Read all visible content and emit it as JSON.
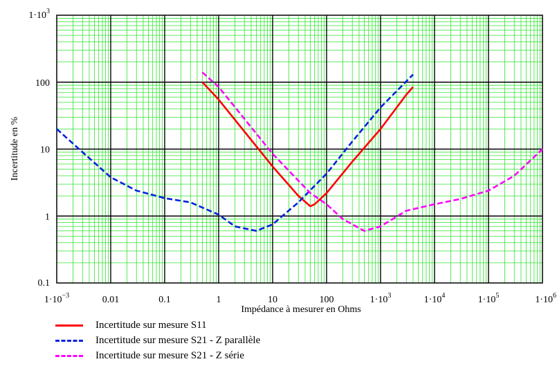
{
  "chart_data": {
    "type": "line",
    "xscale": "log",
    "yscale": "log",
    "xlim": [
      0.001,
      1000000
    ],
    "ylim": [
      0.1,
      1000
    ],
    "xlabel": "Impédance à mesurer en Ohms",
    "ylabel": "Incertitude en %",
    "grid": true,
    "x_ticks": [
      {
        "value": 0.001,
        "base": "1·10",
        "exp": "−3"
      },
      {
        "value": 0.01,
        "base": "0.01",
        "exp": ""
      },
      {
        "value": 0.1,
        "base": "0.1",
        "exp": ""
      },
      {
        "value": 1,
        "base": "1",
        "exp": ""
      },
      {
        "value": 10,
        "base": "10",
        "exp": ""
      },
      {
        "value": 100,
        "base": "100",
        "exp": ""
      },
      {
        "value": 1000,
        "base": "1·10",
        "exp": "3"
      },
      {
        "value": 10000,
        "base": "1·10",
        "exp": "4"
      },
      {
        "value": 100000,
        "base": "1·10",
        "exp": "5"
      },
      {
        "value": 1000000,
        "base": "1·10",
        "exp": "6"
      }
    ],
    "y_ticks": [
      {
        "value": 1000,
        "base": "1·10",
        "exp": "3"
      },
      {
        "value": 100,
        "base": "100",
        "exp": ""
      },
      {
        "value": 10,
        "base": "10",
        "exp": ""
      },
      {
        "value": 1,
        "base": "1",
        "exp": ""
      },
      {
        "value": 0.1,
        "base": "0.1",
        "exp": ""
      }
    ],
    "series": [
      {
        "name": "Incertitude sur mesure S11",
        "color": "#ff0000",
        "dash": "solid",
        "points": [
          [
            0.5,
            100
          ],
          [
            1,
            55
          ],
          [
            5,
            11
          ],
          [
            10,
            5.5
          ],
          [
            30,
            2
          ],
          [
            50,
            1.4
          ],
          [
            60,
            1.5
          ],
          [
            100,
            2.2
          ],
          [
            300,
            6.5
          ],
          [
            1000,
            20
          ],
          [
            3000,
            65
          ],
          [
            4000,
            85
          ]
        ]
      },
      {
        "name": "Incertitude sur mesure S21 - Z parallèle",
        "color": "#0022dd",
        "dash": "dashed",
        "points": [
          [
            0.001,
            20
          ],
          [
            0.003,
            9
          ],
          [
            0.01,
            3.8
          ],
          [
            0.03,
            2.4
          ],
          [
            0.1,
            1.85
          ],
          [
            0.3,
            1.6
          ],
          [
            1,
            1.05
          ],
          [
            2,
            0.7
          ],
          [
            5,
            0.6
          ],
          [
            10,
            0.75
          ],
          [
            30,
            1.6
          ],
          [
            100,
            4.3
          ],
          [
            300,
            13
          ],
          [
            1000,
            42
          ],
          [
            4000,
            130
          ]
        ]
      },
      {
        "name": "Incertitude sur mesure S21 - Z série",
        "color": "#ff00ff",
        "dash": "dashed",
        "points": [
          [
            0.5,
            140
          ],
          [
            1,
            85
          ],
          [
            5,
            17
          ],
          [
            10,
            8.5
          ],
          [
            50,
            2.2
          ],
          [
            100,
            1.5
          ],
          [
            200,
            0.9
          ],
          [
            500,
            0.6
          ],
          [
            1000,
            0.7
          ],
          [
            3000,
            1.2
          ],
          [
            10000,
            1.5
          ],
          [
            30000,
            1.8
          ],
          [
            100000,
            2.4
          ],
          [
            300000,
            4
          ],
          [
            1000000,
            10
          ]
        ]
      }
    ]
  }
}
